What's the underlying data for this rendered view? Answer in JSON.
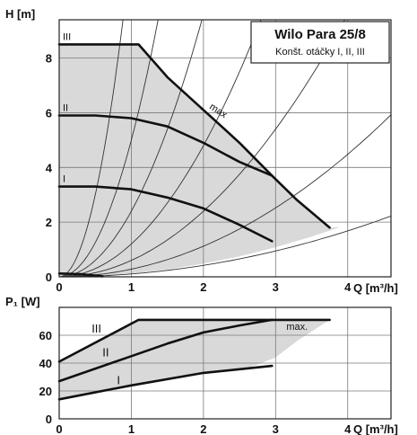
{
  "chart_data": [
    {
      "type": "line",
      "title": "Wilo Para 25/8",
      "subtitle": "Konšt. otáčky I, II, III",
      "xlabel": "Q [m³/h]",
      "ylabel": "H [m]",
      "xlim": [
        0,
        4.6
      ],
      "ylim": [
        0,
        9.4
      ],
      "x_ticks": [
        0,
        1,
        2,
        3,
        4
      ],
      "y_ticks": [
        0,
        2,
        4,
        6,
        8
      ],
      "grid": true,
      "annotation": "max",
      "series": [
        {
          "name": "III",
          "x": [
            0,
            1.1,
            1.5,
            2.0,
            2.5,
            2.95,
            3.3,
            3.75
          ],
          "y": [
            8.5,
            8.5,
            7.3,
            6.1,
            4.9,
            3.7,
            2.8,
            1.8
          ]
        },
        {
          "name": "II",
          "x": [
            0,
            0.5,
            1.0,
            1.5,
            2.0,
            2.5,
            2.95
          ],
          "y": [
            5.9,
            5.9,
            5.8,
            5.5,
            4.9,
            4.2,
            3.7
          ]
        },
        {
          "name": "I",
          "x": [
            0,
            0.5,
            1.0,
            1.5,
            2.0,
            2.5,
            2.95
          ],
          "y": [
            3.3,
            3.3,
            3.2,
            2.9,
            2.5,
            1.9,
            1.3
          ]
        },
        {
          "x": [
            0,
            0.3,
            0.6
          ],
          "y": [
            0.12,
            0.1,
            0.02
          ]
        }
      ],
      "system_curves_k": [
        12,
        5,
        2.4,
        1.2,
        0.6,
        0.28,
        0.105
      ],
      "operating_area_lower_x": [
        0,
        0.5,
        1.0,
        1.5,
        2.0,
        2.5,
        3.0,
        3.5,
        3.9
      ],
      "operating_area_lower_y": [
        0,
        0.03,
        0.12,
        0.27,
        0.48,
        0.75,
        1.08,
        1.47,
        1.82
      ]
    },
    {
      "type": "line",
      "xlabel": "Q [m³/h]",
      "ylabel": "P₁ [W]",
      "xlim": [
        0,
        4.6
      ],
      "ylim": [
        0,
        80
      ],
      "x_ticks": [
        0,
        1,
        2,
        3,
        4
      ],
      "y_ticks": [
        0,
        20,
        40,
        60
      ],
      "grid": true,
      "annotation": "max.",
      "series": [
        {
          "name": "III",
          "x": [
            0,
            1.1,
            3.75
          ],
          "y": [
            41,
            71,
            71
          ]
        },
        {
          "name": "II",
          "x": [
            0,
            1.0,
            1.5,
            2.0,
            2.5,
            2.95
          ],
          "y": [
            27,
            45,
            54,
            62,
            67,
            71
          ]
        },
        {
          "name": "I",
          "x": [
            0,
            1.0,
            2.0,
            2.95
          ],
          "y": [
            14,
            24,
            33,
            38
          ]
        }
      ],
      "operating_area_lower_x": [
        0,
        1.0,
        2.0,
        2.6,
        3.0,
        3.3,
        3.75
      ],
      "operating_area_lower_y": [
        14,
        24,
        33,
        36,
        44,
        56,
        71
      ]
    }
  ]
}
